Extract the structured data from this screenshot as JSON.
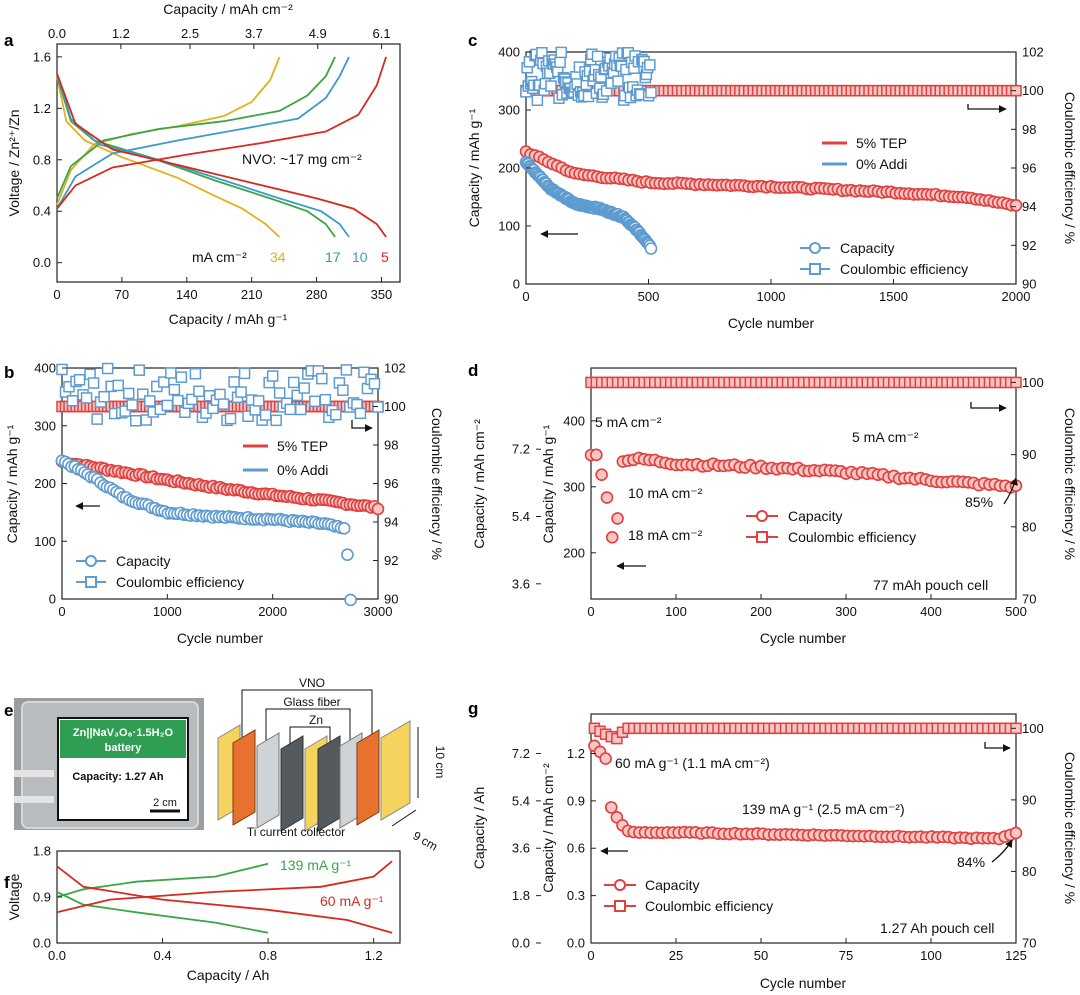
{
  "colors": {
    "red": "#e0403e",
    "red_fill_marker": "#f1a6a4",
    "blue": "#5d9bd0",
    "green": "#3aa646",
    "yellow": "#e3b022",
    "teal": "#3b9bc9",
    "dark_red": "#d62a1e"
  },
  "panel_labels": {
    "a": "a",
    "b": "b",
    "c": "c",
    "d": "d",
    "e": "e",
    "f": "f",
    "g": "g"
  },
  "photo": {
    "line1": "Zn||NaV₃O₈·1.5H₂O",
    "line2": "battery",
    "capacity": "Capacity: 1.27 Ah",
    "scale": "2 cm"
  },
  "schematic": {
    "top": "VNO",
    "glass": "Glass fiber",
    "zn": "Zn",
    "collector": "Ti current collector",
    "height": "10 cm",
    "depth": "9 cm"
  },
  "chart_data": [
    {
      "panel": "a",
      "type": "line",
      "xlabel": "Capacity / mAh g⁻¹",
      "x2label": "Capacity / mAh cm⁻²",
      "ylabel": "Voltage / Zn²⁺/Zn",
      "xlim": [
        0,
        370
      ],
      "ylim": [
        -0.15,
        1.7
      ],
      "xticks": [
        "0",
        "70",
        "140",
        "210",
        "280",
        "350"
      ],
      "x2ticks": [
        "0.0",
        "1.2",
        "2.5",
        "3.7",
        "4.9",
        "6.1"
      ],
      "yticks": [
        "0.0",
        "0.4",
        "0.8",
        "1.2",
        "1.6"
      ],
      "annotation": "NVO: ~17 mg cm⁻²",
      "unit_label": "mA cm⁻²",
      "series": [
        {
          "name": "34",
          "color": "yellow",
          "max_capacity": 240,
          "charge": [
            [
              0,
              0.45
            ],
            [
              15,
              0.72
            ],
            [
              40,
              0.92
            ],
            [
              80,
              1.0
            ],
            [
              130,
              1.06
            ],
            [
              180,
              1.14
            ],
            [
              210,
              1.25
            ],
            [
              230,
              1.42
            ],
            [
              240,
              1.6
            ]
          ],
          "discharge": [
            [
              0,
              1.45
            ],
            [
              10,
              1.1
            ],
            [
              30,
              0.95
            ],
            [
              70,
              0.82
            ],
            [
              130,
              0.66
            ],
            [
              170,
              0.52
            ],
            [
              200,
              0.42
            ],
            [
              225,
              0.3
            ],
            [
              240,
              0.2
            ]
          ]
        },
        {
          "name": "17",
          "color": "green",
          "max_capacity": 300,
          "charge": [
            [
              0,
              0.5
            ],
            [
              15,
              0.75
            ],
            [
              50,
              0.95
            ],
            [
              110,
              1.04
            ],
            [
              180,
              1.1
            ],
            [
              240,
              1.18
            ],
            [
              270,
              1.3
            ],
            [
              290,
              1.45
            ],
            [
              300,
              1.6
            ]
          ],
          "discharge": [
            [
              0,
              1.45
            ],
            [
              15,
              1.1
            ],
            [
              40,
              0.95
            ],
            [
              100,
              0.82
            ],
            [
              170,
              0.64
            ],
            [
              230,
              0.5
            ],
            [
              270,
              0.4
            ],
            [
              290,
              0.3
            ],
            [
              300,
              0.2
            ]
          ]
        },
        {
          "name": "10",
          "color": "teal",
          "max_capacity": 315,
          "charge": [
            [
              0,
              0.42
            ],
            [
              20,
              0.67
            ],
            [
              60,
              0.85
            ],
            [
              130,
              0.95
            ],
            [
              200,
              1.04
            ],
            [
              260,
              1.12
            ],
            [
              290,
              1.28
            ],
            [
              305,
              1.45
            ],
            [
              315,
              1.6
            ]
          ],
          "discharge": [
            [
              0,
              1.47
            ],
            [
              15,
              1.12
            ],
            [
              45,
              0.92
            ],
            [
              110,
              0.8
            ],
            [
              180,
              0.64
            ],
            [
              240,
              0.5
            ],
            [
              285,
              0.4
            ],
            [
              305,
              0.3
            ],
            [
              315,
              0.2
            ]
          ]
        },
        {
          "name": "5",
          "color": "dark_red",
          "max_capacity": 355,
          "charge": [
            [
              0,
              0.42
            ],
            [
              20,
              0.6
            ],
            [
              60,
              0.74
            ],
            [
              140,
              0.84
            ],
            [
              220,
              0.93
            ],
            [
              290,
              1.02
            ],
            [
              325,
              1.15
            ],
            [
              345,
              1.38
            ],
            [
              355,
              1.6
            ]
          ],
          "discharge": [
            [
              0,
              1.47
            ],
            [
              20,
              1.08
            ],
            [
              60,
              0.88
            ],
            [
              130,
              0.76
            ],
            [
              210,
              0.62
            ],
            [
              280,
              0.5
            ],
            [
              320,
              0.42
            ],
            [
              345,
              0.3
            ],
            [
              355,
              0.2
            ]
          ]
        }
      ]
    },
    {
      "panel": "b",
      "type": "scatter",
      "xlabel": "Cycle number",
      "ylabel": "Capacity / mAh g⁻¹",
      "y2label": "Coulombic efficiency / %",
      "xlim": [
        0,
        3000
      ],
      "ylim": [
        0,
        400
      ],
      "y2lim": [
        90,
        102
      ],
      "xticks": [
        "0",
        "1000",
        "2000",
        "3000"
      ],
      "yticks": [
        "0",
        "100",
        "200",
        "300",
        "400"
      ],
      "y2ticks": [
        "90",
        "92",
        "94",
        "96",
        "98",
        "100",
        "102"
      ],
      "legend_series": [
        "5% TEP",
        "0% Addi"
      ],
      "legend_markers": [
        "Capacity",
        "Coulombic efficiency"
      ],
      "series": [
        {
          "name": "5% TEP capacity",
          "color": "red",
          "points": [
            [
              0,
              238
            ],
            [
              500,
              222
            ],
            [
              1000,
              206
            ],
            [
              1500,
              192
            ],
            [
              2000,
              180
            ],
            [
              2500,
              170
            ],
            [
              3000,
              158
            ]
          ]
        },
        {
          "name": "0% Addi capacity",
          "color": "blue",
          "points": [
            [
              0,
              240
            ],
            [
              300,
              210
            ],
            [
              600,
              175
            ],
            [
              1000,
              150
            ],
            [
              1500,
              142
            ],
            [
              2000,
              138
            ],
            [
              2500,
              130
            ],
            [
              2700,
              120
            ],
            [
              2720,
              30
            ],
            [
              2740,
              0
            ]
          ]
        },
        {
          "name": "5% TEP CE",
          "color": "red",
          "points": [
            [
              0,
              100
            ],
            [
              3000,
              100
            ]
          ]
        },
        {
          "name": "0% Addi CE",
          "color": "blue",
          "points": [
            [
              0,
              99.5
            ],
            [
              3000,
              100.5
            ]
          ],
          "scatter_range": [
            99.2,
            102
          ]
        }
      ]
    },
    {
      "panel": "c",
      "type": "scatter",
      "xlabel": "Cycle number",
      "ylabel": "Capacity / mAh g⁻¹",
      "y2label": "Coulombic efficiency / %",
      "xlim": [
        0,
        2000
      ],
      "ylim": [
        0,
        400
      ],
      "y2lim": [
        90,
        102
      ],
      "xticks": [
        "0",
        "500",
        "1000",
        "1500",
        "2000"
      ],
      "yticks": [
        "0",
        "100",
        "200",
        "300",
        "400"
      ],
      "y2ticks": [
        "90",
        "92",
        "94",
        "96",
        "98",
        "100",
        "102"
      ],
      "legend_series": [
        "5% TEP",
        "0% Addi"
      ],
      "legend_markers": [
        "Capacity",
        "Coulombic efficiency"
      ],
      "series": [
        {
          "name": "5% TEP capacity",
          "color": "red",
          "points": [
            [
              0,
              228
            ],
            [
              200,
              190
            ],
            [
              500,
              175
            ],
            [
              1000,
              168
            ],
            [
              1500,
              158
            ],
            [
              1800,
              150
            ],
            [
              2000,
              135
            ]
          ]
        },
        {
          "name": "0% Addi capacity",
          "color": "blue",
          "points": [
            [
              0,
              210
            ],
            [
              100,
              165
            ],
            [
              200,
              138
            ],
            [
              300,
              130
            ],
            [
              400,
              115
            ],
            [
              470,
              85
            ],
            [
              510,
              62
            ]
          ]
        },
        {
          "name": "5% TEP CE",
          "color": "red",
          "points": [
            [
              0,
              100
            ],
            [
              2000,
              100
            ]
          ]
        },
        {
          "name": "0% Addi CE",
          "color": "blue",
          "points": [
            [
              0,
              100
            ],
            [
              510,
              100
            ]
          ],
          "scatter_range": [
            99.5,
            102
          ]
        }
      ]
    },
    {
      "panel": "d",
      "type": "scatter",
      "xlabel": "Cycle number",
      "ylabel": "Capacity / mAh g⁻¹",
      "y3label": "Capacity / mAh cm⁻²",
      "y2label": "Coulombic efficiency / %",
      "xlim": [
        0,
        500
      ],
      "ylim": [
        130,
        480
      ],
      "y2lim": [
        70,
        102
      ],
      "xticks": [
        "0",
        "100",
        "200",
        "300",
        "400",
        "500"
      ],
      "yticks": [
        "200",
        "300",
        "400"
      ],
      "y3ticks": [
        "3.6",
        "5.4",
        "7.2"
      ],
      "y2ticks": [
        "70",
        "80",
        "90",
        "100"
      ],
      "annotations": [
        "5 mA cm⁻²",
        "5 mA cm⁻²",
        "10 mA cm⁻²",
        "18 mA cm⁻²",
        "85%",
        "77 mAh pouch cell"
      ],
      "legend_markers": [
        "Capacity",
        "Coulombic efficiency"
      ],
      "series": [
        {
          "name": "capacity",
          "color": "red",
          "points": [
            [
              0,
              350
            ],
            [
              10,
              345
            ],
            [
              15,
              290
            ],
            [
              20,
              285
            ],
            [
              25,
              225
            ],
            [
              30,
              222
            ],
            [
              35,
              340
            ],
            [
              60,
              342
            ],
            [
              100,
              335
            ],
            [
              200,
              330
            ],
            [
              300,
              322
            ],
            [
              400,
              310
            ],
            [
              500,
              300
            ]
          ]
        },
        {
          "name": "CE",
          "color": "red",
          "points": [
            [
              0,
              100
            ],
            [
              500,
              100
            ]
          ]
        }
      ]
    },
    {
      "panel": "f",
      "type": "line",
      "xlabel": "Capacity / Ah",
      "ylabel": "Voltage",
      "xlim": [
        0,
        1.3
      ],
      "ylim": [
        0,
        1.8
      ],
      "xticks": [
        "0.0",
        "0.4",
        "0.8",
        "1.2"
      ],
      "yticks": [
        "0.0",
        "0.9",
        "1.8"
      ],
      "series": [
        {
          "name": "139 mA g⁻¹",
          "color": "green",
          "charge": [
            [
              0,
              0.9
            ],
            [
              0.1,
              1.05
            ],
            [
              0.3,
              1.2
            ],
            [
              0.6,
              1.3
            ],
            [
              0.8,
              1.55
            ]
          ],
          "discharge": [
            [
              0,
              1.0
            ],
            [
              0.1,
              0.75
            ],
            [
              0.3,
              0.6
            ],
            [
              0.6,
              0.4
            ],
            [
              0.8,
              0.2
            ]
          ]
        },
        {
          "name": "60 mA g⁻¹",
          "color": "dark_red",
          "charge": [
            [
              0,
              0.6
            ],
            [
              0.2,
              0.85
            ],
            [
              0.6,
              1.0
            ],
            [
              1.0,
              1.1
            ],
            [
              1.2,
              1.3
            ],
            [
              1.27,
              1.6
            ]
          ],
          "discharge": [
            [
              0,
              1.5
            ],
            [
              0.1,
              1.1
            ],
            [
              0.4,
              0.85
            ],
            [
              0.8,
              0.65
            ],
            [
              1.1,
              0.45
            ],
            [
              1.27,
              0.2
            ]
          ]
        }
      ]
    },
    {
      "panel": "g",
      "type": "scatter",
      "xlabel": "Cycle number",
      "ylabel": "Capacity / Ah",
      "y3label": "Capacity / mAh cm⁻²",
      "y2label": "Coulombic efficiency / %",
      "xlim": [
        0,
        125
      ],
      "ylim": [
        0,
        1.45
      ],
      "y2lim": [
        70,
        102
      ],
      "xticks": [
        "0",
        "25",
        "50",
        "75",
        "100",
        "125"
      ],
      "yticks": [
        "0.0",
        "0.3",
        "0.6",
        "0.9",
        "1.2"
      ],
      "y3ticks": [
        "0.0",
        "1.8",
        "3.6",
        "5.4",
        "7.2"
      ],
      "y2ticks": [
        "70",
        "80",
        "90",
        "100"
      ],
      "annotations": [
        "60 mA g⁻¹ (1.1 mA cm⁻²)",
        "139 mA g⁻¹ (2.5 mA cm⁻²)",
        "84%",
        "1.27 Ah pouch cell"
      ],
      "legend_markers": [
        "Capacity",
        "Coulombic efficiency"
      ],
      "series": [
        {
          "name": "capacity",
          "color": "red",
          "points": [
            [
              1,
              1.25
            ],
            [
              3,
              1.2
            ],
            [
              5,
              1.15
            ],
            [
              6,
              0.85
            ],
            [
              8,
              0.78
            ],
            [
              10,
              0.72
            ],
            [
              12,
              0.7
            ],
            [
              25,
              0.7
            ],
            [
              50,
              0.69
            ],
            [
              75,
              0.68
            ],
            [
              100,
              0.67
            ],
            [
              120,
              0.66
            ],
            [
              125,
              0.7
            ]
          ]
        },
        {
          "name": "CE",
          "color": "red",
          "points": [
            [
              1,
              100
            ],
            [
              5,
              99
            ],
            [
              8,
              98.5
            ],
            [
              10,
              100
            ],
            [
              125,
              100
            ]
          ]
        }
      ]
    }
  ]
}
